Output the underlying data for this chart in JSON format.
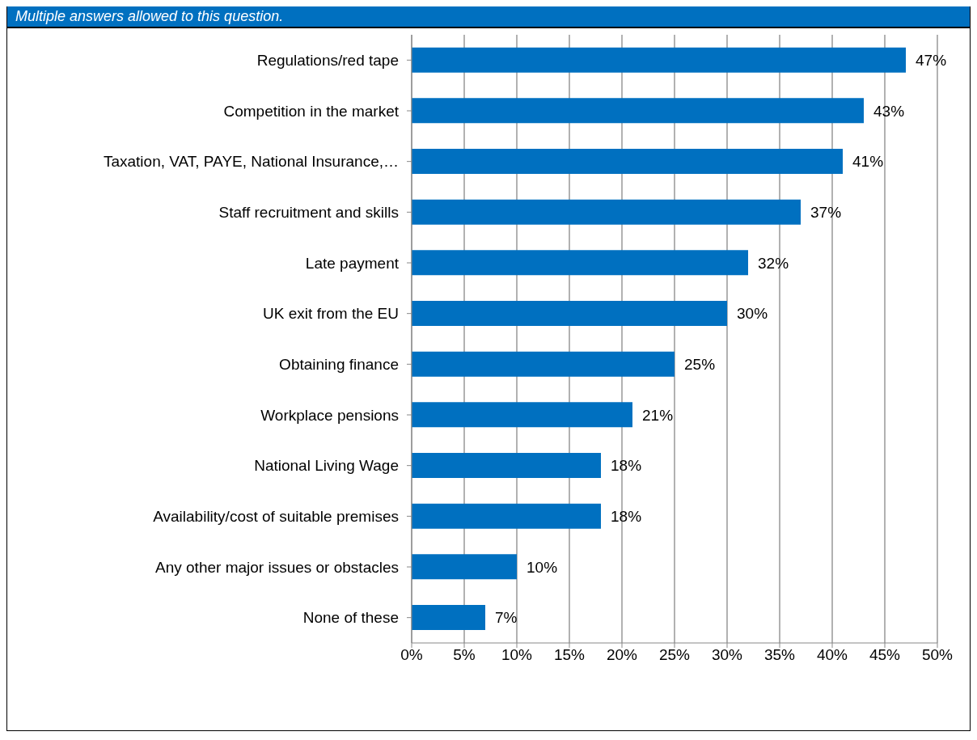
{
  "chart_data": {
    "type": "bar",
    "orientation": "horizontal",
    "subtitle": "Multiple answers allowed to this question.",
    "categories": [
      "Regulations/red tape",
      "Competition in the market",
      "Taxation, VAT, PAYE, National Insurance,…",
      "Staff recruitment and skills",
      "Late payment",
      "UK exit from the EU",
      "Obtaining finance",
      "Workplace pensions",
      "National Living Wage",
      "Availability/cost of suitable premises",
      "Any other major issues or obstacles",
      "None of these"
    ],
    "values": [
      47,
      43,
      41,
      37,
      32,
      30,
      25,
      21,
      18,
      18,
      10,
      7
    ],
    "value_labels": [
      "47%",
      "43%",
      "41%",
      "37%",
      "32%",
      "30%",
      "25%",
      "21%",
      "18%",
      "18%",
      "10%",
      "7%"
    ],
    "color": "#0070c0",
    "xlim": [
      0,
      50
    ],
    "xticks": [
      {
        "value": 0,
        "label": "0%"
      },
      {
        "value": 5,
        "label": "5%"
      },
      {
        "value": 10,
        "label": "10%"
      },
      {
        "value": 15,
        "label": "15%"
      },
      {
        "value": 20,
        "label": "20%"
      },
      {
        "value": 25,
        "label": "25%"
      },
      {
        "value": 30,
        "label": "30%"
      },
      {
        "value": 35,
        "label": "35%"
      },
      {
        "value": 40,
        "label": "40%"
      },
      {
        "value": 45,
        "label": "45%"
      },
      {
        "value": 50,
        "label": "50%"
      }
    ],
    "grid": "x"
  }
}
